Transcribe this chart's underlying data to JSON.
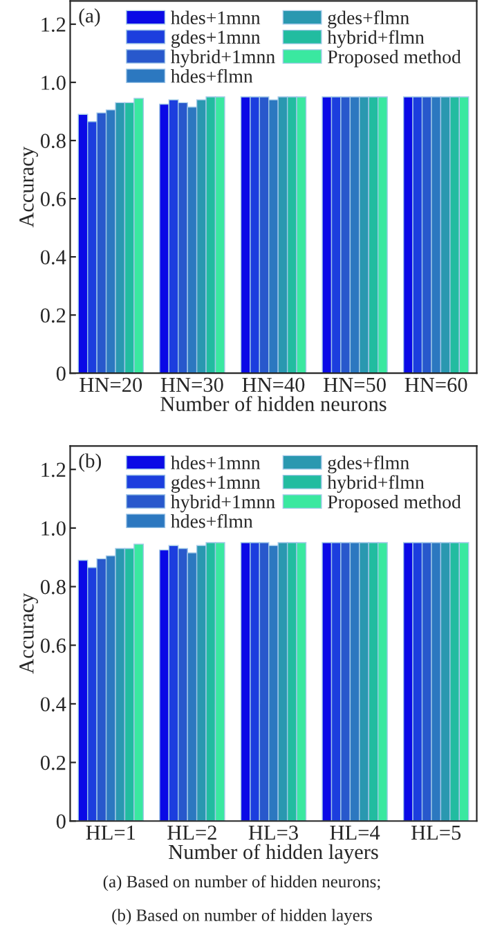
{
  "chart_data": [
    {
      "type": "bar",
      "xlabel": "Number of hidden neurons",
      "ylabel": "Accuracy",
      "annotations": [
        "(a)"
      ],
      "categories": [
        "HN=20",
        "HN=30",
        "HN=40",
        "HN=50",
        "HN=60"
      ],
      "series": [
        {
          "name": "hdes+1mnn",
          "color": "#0a0ae6",
          "values": [
            0.89,
            0.925,
            0.95,
            0.95,
            0.95
          ]
        },
        {
          "name": "gdes+1mnn",
          "color": "#1c3ede",
          "values": [
            0.865,
            0.94,
            0.95,
            0.95,
            0.95
          ]
        },
        {
          "name": "hybrid+1mnn",
          "color": "#2858cc",
          "values": [
            0.895,
            0.93,
            0.95,
            0.95,
            0.95
          ]
        },
        {
          "name": "hdes+flmn",
          "color": "#2c78c0",
          "values": [
            0.905,
            0.915,
            0.94,
            0.95,
            0.95
          ]
        },
        {
          "name": "gdes+flmn",
          "color": "#2a98b0",
          "values": [
            0.93,
            0.94,
            0.95,
            0.95,
            0.95
          ]
        },
        {
          "name": "hybrid+flmn",
          "color": "#22bca0",
          "values": [
            0.93,
            0.95,
            0.95,
            0.95,
            0.95
          ]
        },
        {
          "name": "Proposed method",
          "color": "#3ae8a0",
          "values": [
            0.945,
            0.95,
            0.95,
            0.95,
            0.95
          ]
        }
      ],
      "ylim": [
        0,
        1.28
      ],
      "yticks": [
        0,
        0.2,
        0.4,
        0.6,
        0.8,
        {
          "value": 1,
          "label": "1.0"
        },
        1.2
      ],
      "grid": false,
      "legend": "top"
    },
    {
      "type": "bar",
      "xlabel": "Number of hidden layers",
      "ylabel": "Accuracy",
      "annotations": [
        "(b)",
        "(a) Based on number of hidden neurons;",
        "(b) Based on number of hidden layers"
      ],
      "categories": [
        "HL=1",
        "HL=2",
        "HL=3",
        "HL=4",
        "HL=5"
      ],
      "series": [
        {
          "name": "hdes+1mnn",
          "color": "#0a0ae6",
          "values": [
            0.89,
            0.925,
            0.95,
            0.95,
            0.95
          ]
        },
        {
          "name": "gdes+1mnn",
          "color": "#1c3ede",
          "values": [
            0.865,
            0.94,
            0.95,
            0.95,
            0.95
          ]
        },
        {
          "name": "hybrid+1mnn",
          "color": "#2858cc",
          "values": [
            0.895,
            0.93,
            0.95,
            0.95,
            0.95
          ]
        },
        {
          "name": "hdes+flmn",
          "color": "#2c78c0",
          "values": [
            0.905,
            0.915,
            0.94,
            0.95,
            0.95
          ]
        },
        {
          "name": "gdes+flmn",
          "color": "#2a98b0",
          "values": [
            0.93,
            0.94,
            0.95,
            0.95,
            0.95
          ]
        },
        {
          "name": "hybrid+flmn",
          "color": "#22bca0",
          "values": [
            0.93,
            0.95,
            0.95,
            0.95,
            0.95
          ]
        },
        {
          "name": "Proposed method",
          "color": "#3ae8a0",
          "values": [
            0.945,
            0.95,
            0.95,
            0.95,
            0.95
          ]
        }
      ],
      "ylim": [
        0,
        1.28
      ],
      "yticks": [
        0,
        0.2,
        0.4,
        0.6,
        0.8,
        {
          "value": 1,
          "label": "1.0"
        },
        1.2
      ],
      "grid": false,
      "legend": "top"
    }
  ]
}
